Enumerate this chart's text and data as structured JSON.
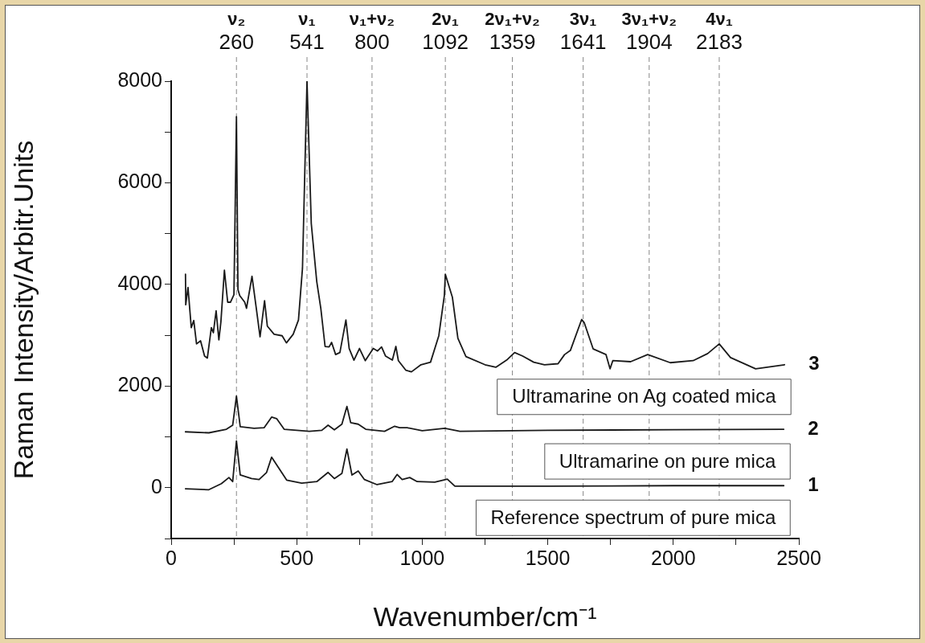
{
  "chart_data": {
    "type": "line",
    "xlabel": "Wavenumber/cm⁻¹",
    "ylabel": "Raman Intensity/Arbitr.Units",
    "xlim": [
      0,
      2500
    ],
    "ylim": [
      -1000,
      8000
    ],
    "xticks": [
      0,
      {
        "value": 250,
        "label": null
      },
      500,
      {
        "value": 750,
        "label": null
      },
      1000,
      {
        "value": 1250,
        "label": null
      },
      1500,
      {
        "value": 1750,
        "label": null
      },
      2000,
      {
        "value": 2250,
        "label": null
      },
      2500
    ],
    "yticks": [
      {
        "value": -1000,
        "label": null
      },
      0,
      {
        "value": 1000,
        "label": null
      },
      2000,
      {
        "value": 3000,
        "label": null
      },
      4000,
      {
        "value": 5000,
        "label": null
      },
      6000,
      {
        "value": 7000,
        "label": null
      },
      8000
    ],
    "grid": false,
    "legend": false,
    "marker": "none",
    "line_style": "solid",
    "series": [
      {
        "name": "Ultramarine on Ag coated mica",
        "color": "#1a1a1a",
        "x": [
          57,
          58,
          67,
          80,
          90,
          101,
          117,
          133,
          144,
          160,
          168,
          179,
          190,
          198,
          212,
          225,
          236,
          250,
          260,
          266,
          273,
          293,
          300,
          322,
          338,
          354,
          372,
          383,
          410,
          442,
          459,
          486,
          507,
          523,
          541,
          558,
          570,
          580,
          596,
          613,
          629,
          639,
          655,
          672,
          696,
          709,
          728,
          750,
          773,
          805,
          822,
          838,
          854,
          881,
          895,
          905,
          935,
          957,
          995,
          1033,
          1066,
          1088,
          1092,
          1120,
          1142,
          1174,
          1250,
          1293,
          1336,
          1368,
          1400,
          1444,
          1487,
          1541,
          1567,
          1590,
          1635,
          1645,
          1681,
          1732,
          1748,
          1759,
          1830,
          1898,
          1988,
          2079,
          2137,
          2183,
          2228,
          2328,
          2443
        ],
        "values": [
          4200,
          3600,
          3940,
          3150,
          3290,
          2830,
          2890,
          2590,
          2550,
          3150,
          3050,
          3480,
          2910,
          3260,
          4280,
          3650,
          3650,
          3800,
          7300,
          3900,
          3780,
          3650,
          3530,
          4160,
          3570,
          2970,
          3680,
          3180,
          3020,
          2990,
          2850,
          3020,
          3300,
          4320,
          8000,
          5200,
          4570,
          4050,
          3530,
          2780,
          2770,
          2860,
          2620,
          2660,
          3300,
          2740,
          2510,
          2740,
          2500,
          2740,
          2690,
          2770,
          2590,
          2510,
          2780,
          2500,
          2310,
          2280,
          2420,
          2470,
          2990,
          3780,
          4200,
          3750,
          2940,
          2580,
          2420,
          2370,
          2510,
          2660,
          2590,
          2470,
          2420,
          2440,
          2620,
          2700,
          3310,
          3250,
          2730,
          2620,
          2340,
          2500,
          2480,
          2620,
          2460,
          2500,
          2640,
          2830,
          2560,
          2340,
          2420
        ]
      },
      {
        "name": "Ultramarine on pure mica",
        "color": "#1a1a1a",
        "x": [
          57,
          150,
          220,
          245,
          260,
          275,
          330,
          370,
          400,
          420,
          450,
          550,
          600,
          625,
          650,
          680,
          700,
          715,
          745,
          775,
          850,
          890,
          910,
          940,
          1000,
          1090,
          1150,
          1500,
          2000,
          2440
        ],
        "values": [
          1100,
          1080,
          1150,
          1230,
          1800,
          1200,
          1170,
          1180,
          1390,
          1360,
          1150,
          1110,
          1130,
          1230,
          1140,
          1250,
          1600,
          1280,
          1250,
          1150,
          1110,
          1210,
          1180,
          1180,
          1120,
          1170,
          1110,
          1130,
          1140,
          1150
        ]
      },
      {
        "name": "Reference spectrum of pure mica",
        "color": "#1a1a1a",
        "x": [
          57,
          150,
          200,
          230,
          245,
          260,
          275,
          320,
          350,
          380,
          400,
          420,
          460,
          520,
          580,
          625,
          650,
          680,
          700,
          720,
          745,
          770,
          820,
          880,
          900,
          920,
          950,
          980,
          1050,
          1100,
          1130,
          1500,
          2000,
          2440
        ],
        "values": [
          -20,
          -40,
          80,
          200,
          120,
          920,
          250,
          180,
          160,
          300,
          600,
          450,
          150,
          90,
          120,
          300,
          180,
          280,
          760,
          250,
          330,
          160,
          60,
          120,
          260,
          160,
          200,
          120,
          110,
          170,
          30,
          30,
          40,
          40
        ]
      }
    ],
    "ref_lines": [
      {
        "axis": "x",
        "value": 260,
        "label": "ν₂\n260",
        "line_style": "dashed"
      },
      {
        "axis": "x",
        "value": 541,
        "label": "ν₁\n541",
        "line_style": "dashed"
      },
      {
        "axis": "x",
        "value": 800,
        "label": "ν₁+ν₂\n800",
        "line_style": "dashed"
      },
      {
        "axis": "x",
        "value": 1092,
        "label": "2ν₁\n1092",
        "line_style": "dashed"
      },
      {
        "axis": "x",
        "value": 1359,
        "label": "2ν₁+ν₂\n1359",
        "line_style": "dashed"
      },
      {
        "axis": "x",
        "value": 1641,
        "label": "3ν₁\n1641",
        "line_style": "dashed"
      },
      {
        "axis": "x",
        "value": 1904,
        "label": "3ν₁+ν₂\n1904",
        "line_style": "dashed"
      },
      {
        "axis": "x",
        "value": 2183,
        "label": "4ν₁\n2183",
        "line_style": "dashed"
      }
    ],
    "annotations": [
      "3",
      "2",
      "1"
    ]
  }
}
